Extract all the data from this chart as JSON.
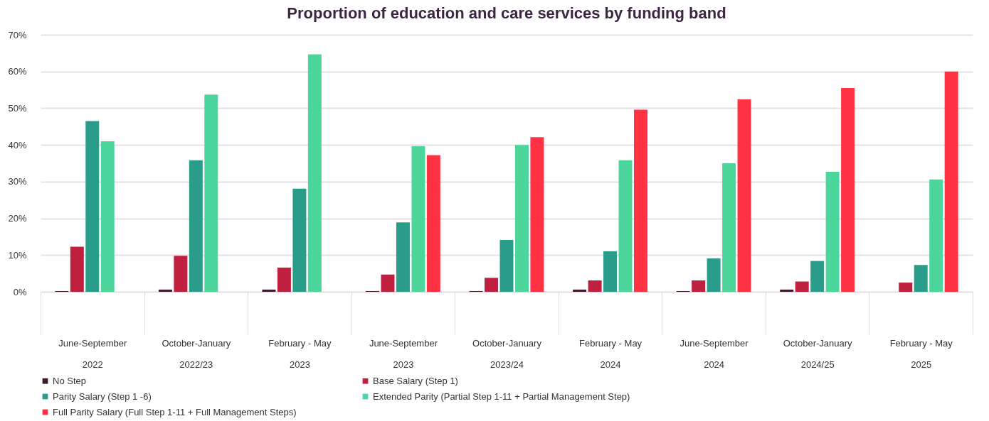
{
  "chart_data": {
    "type": "bar",
    "title": "Proportion of education and care services by funding band",
    "categories": [
      "June-September\n2022",
      "October-January\n2022/23",
      "February - May\n2023",
      "June-September\n2023",
      "October-January\n2023/24",
      "February - May\n2024",
      "June-September\n2024",
      "October-January\n2024/25",
      "February - May\n2025"
    ],
    "series": [
      {
        "name": "No Step",
        "color": "#3d1a2e",
        "values": [
          0.2,
          0.6,
          0.6,
          0.2,
          0.2,
          0.6,
          0.2,
          0.6,
          null
        ]
      },
      {
        "name": "Base Salary (Step 1)",
        "color": "#c0203f",
        "values": [
          12.3,
          9.8,
          6.6,
          4.7,
          3.8,
          3.1,
          3.1,
          2.8,
          2.5
        ]
      },
      {
        "name": "Parity Salary (Step 1 -6)",
        "color": "#2a9d8a",
        "values": [
          46.5,
          35.8,
          28.1,
          18.9,
          14.1,
          11.0,
          9.1,
          8.4,
          7.3
        ]
      },
      {
        "name": "Extended Parity (Partial Step 1-11 + Partial Management Step)",
        "color": "#4dd69c",
        "values": [
          41.0,
          53.7,
          64.7,
          39.7,
          40.0,
          35.8,
          35.0,
          32.7,
          30.6
        ]
      },
      {
        "name": "Full Parity Salary (Full Step 1-11 + Full Management Steps)",
        "color": "#ff3344",
        "values": [
          null,
          null,
          null,
          37.2,
          42.1,
          49.6,
          52.4,
          55.5,
          60.0
        ]
      }
    ],
    "ylim": [
      0,
      70
    ],
    "yticks": [
      {
        "value": 0,
        "label": "0%"
      },
      {
        "value": 10,
        "label": "10%"
      },
      {
        "value": 20,
        "label": "20%"
      },
      {
        "value": 30,
        "label": "30%"
      },
      {
        "value": 40,
        "label": "40%"
      },
      {
        "value": 50,
        "label": "50%"
      },
      {
        "value": 60,
        "label": "60%"
      },
      {
        "value": 70,
        "label": "70%"
      }
    ],
    "grid": "y",
    "legend": "bottom"
  }
}
